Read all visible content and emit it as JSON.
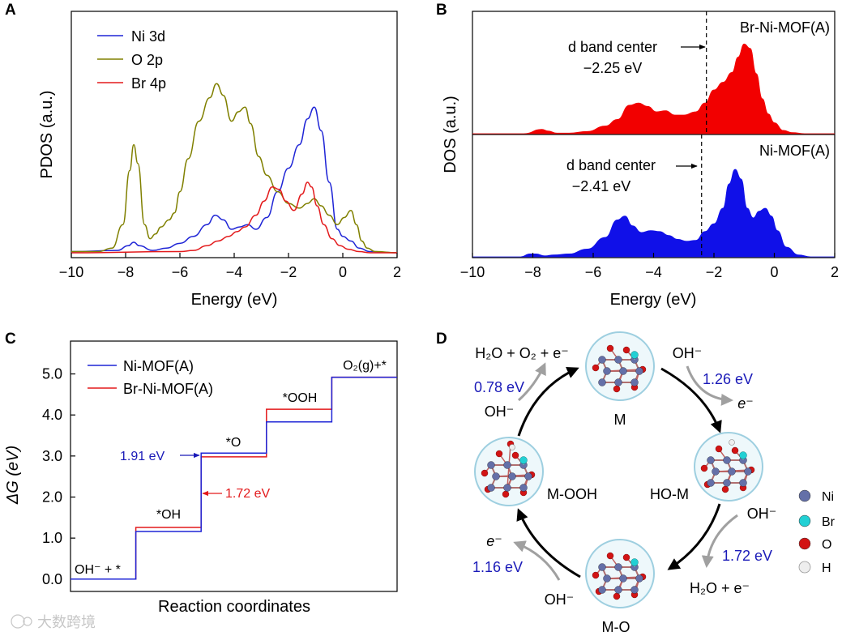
{
  "colors": {
    "blue": "#1f25d6",
    "olive": "#808000",
    "red": "#e31a1c",
    "red_fill": "#f20000",
    "blue_fill": "#1010e8",
    "ni_atom": "#6470a8",
    "br_atom": "#22d0d4",
    "o_atom": "#d21414",
    "h_atom": "#eeeeee",
    "circle_stroke": "#9ecfe0",
    "circle_fill": "#eef8fb",
    "gray_arrow": "#a0a0a0",
    "annot_blue": "#1a1ab8"
  },
  "watermark": "大数跨境",
  "chart_data": [
    {
      "panel": "A",
      "type": "line",
      "xlabel": "Energy (eV)",
      "ylabel": "PDOS (a.u.)",
      "xlim": [
        -10,
        2
      ],
      "ylim": [
        0,
        1
      ],
      "xticks": [
        -10,
        -8,
        -6,
        -4,
        -2,
        0,
        2
      ],
      "xtick_labels": [
        "−10",
        "−8",
        "−6",
        "−4",
        "−2",
        "0",
        "2"
      ],
      "legend_position": "top-left",
      "series": [
        {
          "name": "Ni 3d",
          "color": "#1f25d6",
          "x": [
            -10,
            -8.3,
            -7.9,
            -7.7,
            -7.5,
            -7.0,
            -6.5,
            -6.0,
            -5.5,
            -5.0,
            -4.7,
            -4.4,
            -4.1,
            -3.8,
            -3.5,
            -3.2,
            -2.8,
            -2.4,
            -2.0,
            -1.6,
            -1.3,
            -1.05,
            -0.8,
            -0.5,
            -0.2,
            0,
            0.3,
            0.6,
            1.0,
            2
          ],
          "y": [
            0.005,
            0.01,
            0.03,
            0.045,
            0.03,
            0.01,
            0.02,
            0.04,
            0.07,
            0.12,
            0.16,
            0.14,
            0.1,
            0.11,
            0.12,
            0.1,
            0.15,
            0.26,
            0.36,
            0.46,
            0.57,
            0.62,
            0.52,
            0.3,
            0.1,
            0.07,
            0.05,
            0.02,
            0.005,
            0.0
          ]
        },
        {
          "name": "O 2p",
          "color": "#808000",
          "x": [
            -10,
            -9,
            -8.5,
            -8.1,
            -7.85,
            -7.7,
            -7.55,
            -7.3,
            -7.1,
            -6.9,
            -6.7,
            -6.4,
            -6.2,
            -6.0,
            -5.7,
            -5.3,
            -4.9,
            -4.65,
            -4.4,
            -4.1,
            -3.85,
            -3.6,
            -3.4,
            -3.1,
            -2.8,
            -2.4,
            -2.0,
            -1.6,
            -1.3,
            -1.05,
            -0.8,
            -0.5,
            -0.2,
            0.05,
            0.3,
            0.5,
            0.7,
            0.9,
            1.2,
            2
          ],
          "y": [
            0.005,
            0.005,
            0.02,
            0.12,
            0.35,
            0.46,
            0.38,
            0.12,
            0.06,
            0.08,
            0.11,
            0.14,
            0.17,
            0.26,
            0.4,
            0.56,
            0.66,
            0.72,
            0.67,
            0.56,
            0.6,
            0.62,
            0.55,
            0.41,
            0.33,
            0.26,
            0.21,
            0.19,
            0.21,
            0.23,
            0.2,
            0.16,
            0.12,
            0.15,
            0.18,
            0.12,
            0.05,
            0.02,
            0.005,
            0.0
          ]
        },
        {
          "name": "Br 4p",
          "color": "#e31a1c",
          "x": [
            -10,
            -6,
            -5.5,
            -5.0,
            -4.6,
            -4.2,
            -3.9,
            -3.6,
            -3.2,
            -2.9,
            -2.6,
            -2.35,
            -2.1,
            -1.8,
            -1.5,
            -1.3,
            -1.15,
            -0.95,
            -0.7,
            -0.4,
            -0.1,
            0.2,
            0.6,
            1.0,
            2
          ],
          "y": [
            0.0,
            0.005,
            0.01,
            0.03,
            0.05,
            0.07,
            0.09,
            0.11,
            0.16,
            0.22,
            0.28,
            0.27,
            0.22,
            0.18,
            0.25,
            0.3,
            0.28,
            0.2,
            0.12,
            0.06,
            0.03,
            0.015,
            0.005,
            0.0,
            0.0
          ]
        }
      ]
    },
    {
      "panel": "B",
      "type": "area",
      "xlabel": "Energy (eV)",
      "ylabel": "DOS (a.u.)",
      "xlim": [
        -10,
        2
      ],
      "xticks": [
        -10,
        -8,
        -6,
        -4,
        -2,
        0,
        2
      ],
      "xtick_labels": [
        "−10",
        "−8",
        "−6",
        "−4",
        "−2",
        "0",
        "2"
      ],
      "series": [
        {
          "name": "Br-Ni-MOF(A)",
          "color": "#f20000",
          "d_band_center": -2.25,
          "d_band_label": "d band center",
          "d_band_value_label": "−2.25 eV",
          "x": [
            -10,
            -8.3,
            -7.7,
            -7.5,
            -7.2,
            -6.8,
            -6.2,
            -5.6,
            -5.2,
            -4.8,
            -4.5,
            -4.2,
            -3.9,
            -3.6,
            -3.3,
            -3.0,
            -2.6,
            -2.3,
            -2.0,
            -1.7,
            -1.4,
            -1.2,
            -1.0,
            -0.8,
            -0.6,
            -0.4,
            -0.2,
            0.0,
            0.3,
            0.6,
            1.0,
            2
          ],
          "y": [
            0.0,
            0.0,
            0.04,
            0.025,
            0.005,
            0.005,
            0.02,
            0.07,
            0.13,
            0.26,
            0.28,
            0.25,
            0.2,
            0.21,
            0.17,
            0.17,
            0.2,
            0.28,
            0.4,
            0.47,
            0.56,
            0.7,
            0.82,
            0.78,
            0.55,
            0.32,
            0.18,
            0.1,
            0.03,
            0.01,
            0.0,
            0.0
          ]
        },
        {
          "name": "Ni-MOF(A)",
          "color": "#1010e8",
          "d_band_center": -2.41,
          "d_band_label": "d band center",
          "d_band_value_label": "−2.41 eV",
          "x": [
            -10,
            -8.4,
            -8.1,
            -7.9,
            -7.6,
            -7.3,
            -6.8,
            -6.2,
            -5.6,
            -5.2,
            -4.95,
            -4.7,
            -4.4,
            -4.1,
            -3.8,
            -3.5,
            -3.2,
            -2.9,
            -2.6,
            -2.3,
            -2.0,
            -1.7,
            -1.5,
            -1.3,
            -1.1,
            -0.9,
            -0.7,
            -0.5,
            -0.3,
            -0.1,
            0.1,
            0.4,
            0.8,
            1.2,
            2
          ],
          "y": [
            0.0,
            0.0,
            0.03,
            0.03,
            0.01,
            0.02,
            0.03,
            0.08,
            0.2,
            0.38,
            0.42,
            0.32,
            0.25,
            0.27,
            0.26,
            0.22,
            0.18,
            0.16,
            0.17,
            0.26,
            0.34,
            0.5,
            0.75,
            0.9,
            0.8,
            0.5,
            0.4,
            0.47,
            0.5,
            0.42,
            0.27,
            0.1,
            0.02,
            0.0,
            0.0
          ]
        }
      ]
    },
    {
      "panel": "C",
      "type": "step",
      "xlabel": "Reaction coordinates",
      "ylabel": "ΔG (eV)",
      "ylim": [
        -0.3,
        5.8
      ],
      "yticks": [
        0,
        1,
        2,
        3,
        4,
        5
      ],
      "ytick_labels": [
        "0.0",
        "1.0",
        "2.0",
        "3.0",
        "4.0",
        "5.0"
      ],
      "legend_position": "top-left",
      "states": [
        "OH⁻ + *",
        "*OH",
        "*O",
        "*OOH",
        "O₂(g)+*"
      ],
      "series": [
        {
          "name": "Ni-MOF(A)",
          "color": "#1f25d6",
          "values": [
            0.0,
            1.16,
            3.07,
            3.83,
            4.92
          ]
        },
        {
          "name": "Br-Ni-MOF(A)",
          "color": "#e31a1c",
          "values": [
            0.0,
            1.26,
            2.98,
            4.14,
            4.92
          ]
        }
      ],
      "annotations": [
        {
          "text": "1.91 eV",
          "color": "#1a1ab8",
          "series": "Ni-MOF(A)",
          "step": 2
        },
        {
          "text": "1.72 eV",
          "color": "#e31a1c",
          "series": "Br-Ni-MOF(A)",
          "step": 2
        }
      ]
    }
  ],
  "panel_d": {
    "label": "D",
    "states": [
      {
        "name": "M"
      },
      {
        "name": "HO-M"
      },
      {
        "name": "M-O"
      },
      {
        "name": "M-OOH"
      }
    ],
    "steps": [
      {
        "energy": "1.26 eV",
        "reactant": "OH⁻",
        "product": "e⁻"
      },
      {
        "energy": "1.72 eV",
        "reactant": "OH⁻",
        "product": "H₂O + e⁻"
      },
      {
        "energy": "1.16 eV",
        "reactant": "OH⁻",
        "product": "e⁻"
      },
      {
        "energy": "0.78 eV",
        "reactant": "OH⁻",
        "product": "H₂O + O₂ + e⁻"
      }
    ],
    "legend": [
      {
        "label": "Ni",
        "color": "#6470a8"
      },
      {
        "label": "Br",
        "color": "#22d0d4"
      },
      {
        "label": "O",
        "color": "#d21414"
      },
      {
        "label": "H",
        "color": "#eeeeee"
      }
    ]
  }
}
